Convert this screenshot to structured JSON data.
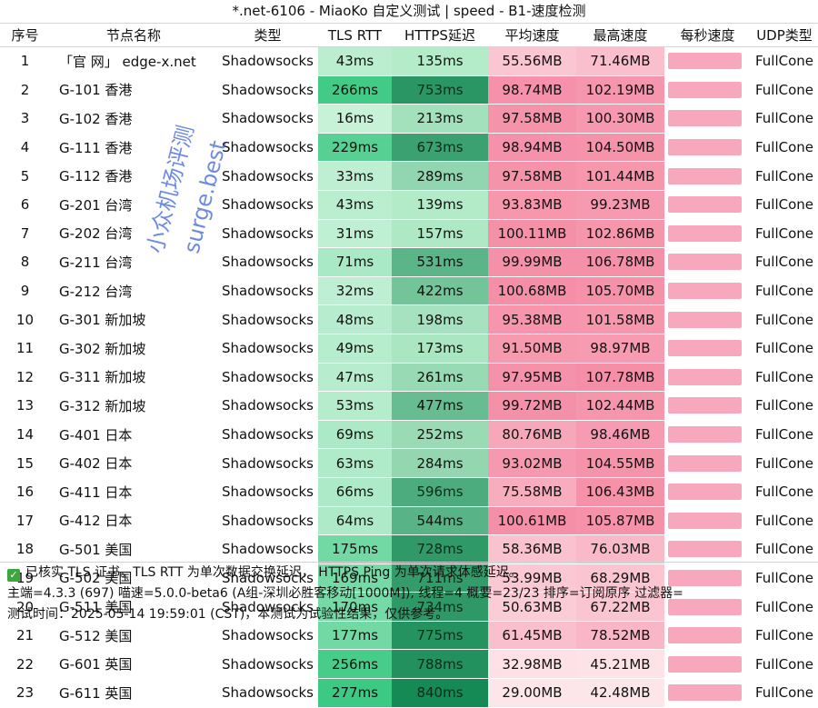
{
  "window": {
    "title": "*.net-6106 - MiaoKo 自定义测试 | speed - B1-速度检测"
  },
  "table": {
    "headers": [
      "序号",
      "节点名称",
      "类型",
      "TLS RTT",
      "HTTPS延迟",
      "平均速度",
      "最高速度",
      "每秒速度",
      "UDP类型"
    ],
    "rows": [
      [
        "1",
        "「官 网」 edge-x.net",
        "Shadowsocks",
        "43ms",
        "135ms",
        "55.56MB",
        "71.46MB",
        "",
        "FullCone"
      ],
      [
        "2",
        "G-101 香港",
        "Shadowsocks",
        "266ms",
        "753ms",
        "98.74MB",
        "102.19MB",
        "",
        "FullCone"
      ],
      [
        "3",
        "G-102 香港",
        "Shadowsocks",
        "16ms",
        "213ms",
        "97.58MB",
        "100.30MB",
        "",
        "FullCone"
      ],
      [
        "4",
        "G-111 香港",
        "Shadowsocks",
        "229ms",
        "673ms",
        "98.94MB",
        "104.50MB",
        "",
        "FullCone"
      ],
      [
        "5",
        "G-112 香港",
        "Shadowsocks",
        "33ms",
        "289ms",
        "97.58MB",
        "101.44MB",
        "",
        "FullCone"
      ],
      [
        "6",
        "G-201 台湾",
        "Shadowsocks",
        "43ms",
        "139ms",
        "93.83MB",
        "99.23MB",
        "",
        "FullCone"
      ],
      [
        "7",
        "G-202 台湾",
        "Shadowsocks",
        "31ms",
        "157ms",
        "100.11MB",
        "102.86MB",
        "",
        "FullCone"
      ],
      [
        "8",
        "G-211 台湾",
        "Shadowsocks",
        "71ms",
        "531ms",
        "99.99MB",
        "106.78MB",
        "",
        "FullCone"
      ],
      [
        "9",
        "G-212 台湾",
        "Shadowsocks",
        "32ms",
        "422ms",
        "100.68MB",
        "105.70MB",
        "",
        "FullCone"
      ],
      [
        "10",
        "G-301 新加坡",
        "Shadowsocks",
        "48ms",
        "198ms",
        "95.38MB",
        "101.58MB",
        "",
        "FullCone"
      ],
      [
        "11",
        "G-302 新加坡",
        "Shadowsocks",
        "49ms",
        "173ms",
        "91.50MB",
        "98.97MB",
        "",
        "FullCone"
      ],
      [
        "12",
        "G-311 新加坡",
        "Shadowsocks",
        "47ms",
        "261ms",
        "97.95MB",
        "107.78MB",
        "",
        "FullCone"
      ],
      [
        "13",
        "G-312 新加坡",
        "Shadowsocks",
        "53ms",
        "477ms",
        "99.72MB",
        "102.44MB",
        "",
        "FullCone"
      ],
      [
        "14",
        "G-401 日本",
        "Shadowsocks",
        "69ms",
        "252ms",
        "80.76MB",
        "98.46MB",
        "",
        "FullCone"
      ],
      [
        "15",
        "G-402 日本",
        "Shadowsocks",
        "63ms",
        "284ms",
        "93.02MB",
        "104.55MB",
        "",
        "FullCone"
      ],
      [
        "16",
        "G-411 日本",
        "Shadowsocks",
        "66ms",
        "596ms",
        "75.58MB",
        "106.43MB",
        "",
        "FullCone"
      ],
      [
        "17",
        "G-412 日本",
        "Shadowsocks",
        "64ms",
        "544ms",
        "100.61MB",
        "105.87MB",
        "",
        "FullCone"
      ],
      [
        "18",
        "G-501 美国",
        "Shadowsocks",
        "175ms",
        "728ms",
        "58.36MB",
        "76.03MB",
        "",
        "FullCone"
      ],
      [
        "19",
        "G-502 美国",
        "Shadowsocks",
        "169ms",
        "711ms",
        "53.99MB",
        "68.29MB",
        "",
        "FullCone"
      ],
      [
        "20",
        "G-511 美国",
        "Shadowsocks",
        "170ms",
        "734ms",
        "50.63MB",
        "67.22MB",
        "",
        "FullCone"
      ],
      [
        "21",
        "G-512 美国",
        "Shadowsocks",
        "177ms",
        "775ms",
        "61.45MB",
        "78.52MB",
        "",
        "FullCone"
      ],
      [
        "22",
        "G-601 英国",
        "Shadowsocks",
        "256ms",
        "788ms",
        "32.98MB",
        "45.21MB",
        "",
        "FullCone"
      ],
      [
        "23",
        "G-611 英国",
        "Shadowsocks",
        "277ms",
        "840ms",
        "29.00MB",
        "42.48MB",
        "",
        "FullCone"
      ]
    ]
  },
  "colors": {
    "tls_low": "#c8f2d8",
    "tls_high": "#3cc983",
    "https_low": "#b4ebc9",
    "https_high": "#168a55",
    "speed_low": "#fde6ea",
    "speed_high": "#f58fa8",
    "persec": "#f8a8bd"
  },
  "footer": {
    "line1": "已核实 TLS 证书。TLS RTT 为单次数据交换延迟， HTTPS Ping 为单次请求体感延迟。",
    "line2": "主端=4.3.3 (697) 喵速=5.0.0-beta6 (A组-深圳必胜客移动[1000M]), 线程=4 概要=23/23 排序=订阅原序 过滤器=",
    "line3": "测试时间：2025-05-14 19:59:01 (CST)，本测试为试验性结果，仅供参考。"
  },
  "watermark": {
    "line1": "小众机场评测",
    "line2": "surge.best"
  }
}
